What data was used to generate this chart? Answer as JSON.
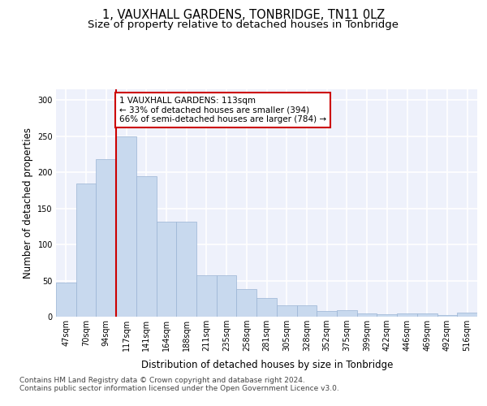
{
  "title": "1, VAUXHALL GARDENS, TONBRIDGE, TN11 0LZ",
  "subtitle": "Size of property relative to detached houses in Tonbridge",
  "xlabel": "Distribution of detached houses by size in Tonbridge",
  "ylabel": "Number of detached properties",
  "categories": [
    "47sqm",
    "70sqm",
    "94sqm",
    "117sqm",
    "141sqm",
    "164sqm",
    "188sqm",
    "211sqm",
    "235sqm",
    "258sqm",
    "281sqm",
    "305sqm",
    "328sqm",
    "352sqm",
    "375sqm",
    "399sqm",
    "422sqm",
    "446sqm",
    "469sqm",
    "492sqm",
    "516sqm"
  ],
  "values": [
    47,
    184,
    218,
    250,
    195,
    132,
    132,
    57,
    57,
    38,
    26,
    16,
    16,
    8,
    9,
    4,
    3,
    4,
    5,
    2,
    6
  ],
  "bar_color": "#c8d9ee",
  "bar_edge_color": "#9ab4d4",
  "vline_x_index": 3,
  "vline_color": "#cc0000",
  "annotation_text": "1 VAUXHALL GARDENS: 113sqm\n← 33% of detached houses are smaller (394)\n66% of semi-detached houses are larger (784) →",
  "annotation_box_facecolor": "#ffffff",
  "annotation_box_edgecolor": "#cc0000",
  "footer_text": "Contains HM Land Registry data © Crown copyright and database right 2024.\nContains public sector information licensed under the Open Government Licence v3.0.",
  "ylim": [
    0,
    315
  ],
  "yticks": [
    0,
    50,
    100,
    150,
    200,
    250,
    300
  ],
  "background_color": "#eef1fb",
  "grid_color": "#ffffff",
  "title_fontsize": 10.5,
  "subtitle_fontsize": 9.5,
  "ylabel_fontsize": 8.5,
  "xlabel_fontsize": 8.5,
  "tick_fontsize": 7,
  "annotation_fontsize": 7.5,
  "footer_fontsize": 6.5
}
